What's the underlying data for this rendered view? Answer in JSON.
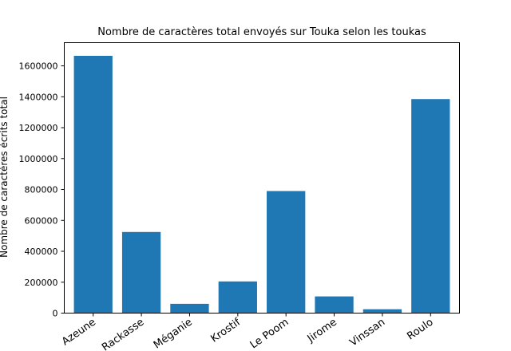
{
  "chart_data": {
    "type": "bar",
    "title": "Nombre de caractères total envoyés sur Touka selon les toukas",
    "xlabel": "",
    "ylabel": "Nombre de caractères écrits total",
    "categories": [
      "Azeune",
      "Rackasse",
      "Méganie",
      "Krostif",
      "Le Poom",
      "Jirome",
      "Vinssan",
      "Roulo"
    ],
    "values": [
      1665000,
      525000,
      60000,
      205000,
      790000,
      108000,
      25000,
      1385000
    ],
    "ylim": [
      0,
      1750000
    ],
    "yticks": [
      0,
      200000,
      400000,
      600000,
      800000,
      1000000,
      1200000,
      1400000,
      1600000
    ],
    "ytick_labels": [
      "0",
      "200000",
      "400000",
      "600000",
      "800000",
      "1000000",
      "1200000",
      "1400000",
      "1600000"
    ],
    "grid": false,
    "bar_color": "#1f77b4"
  }
}
